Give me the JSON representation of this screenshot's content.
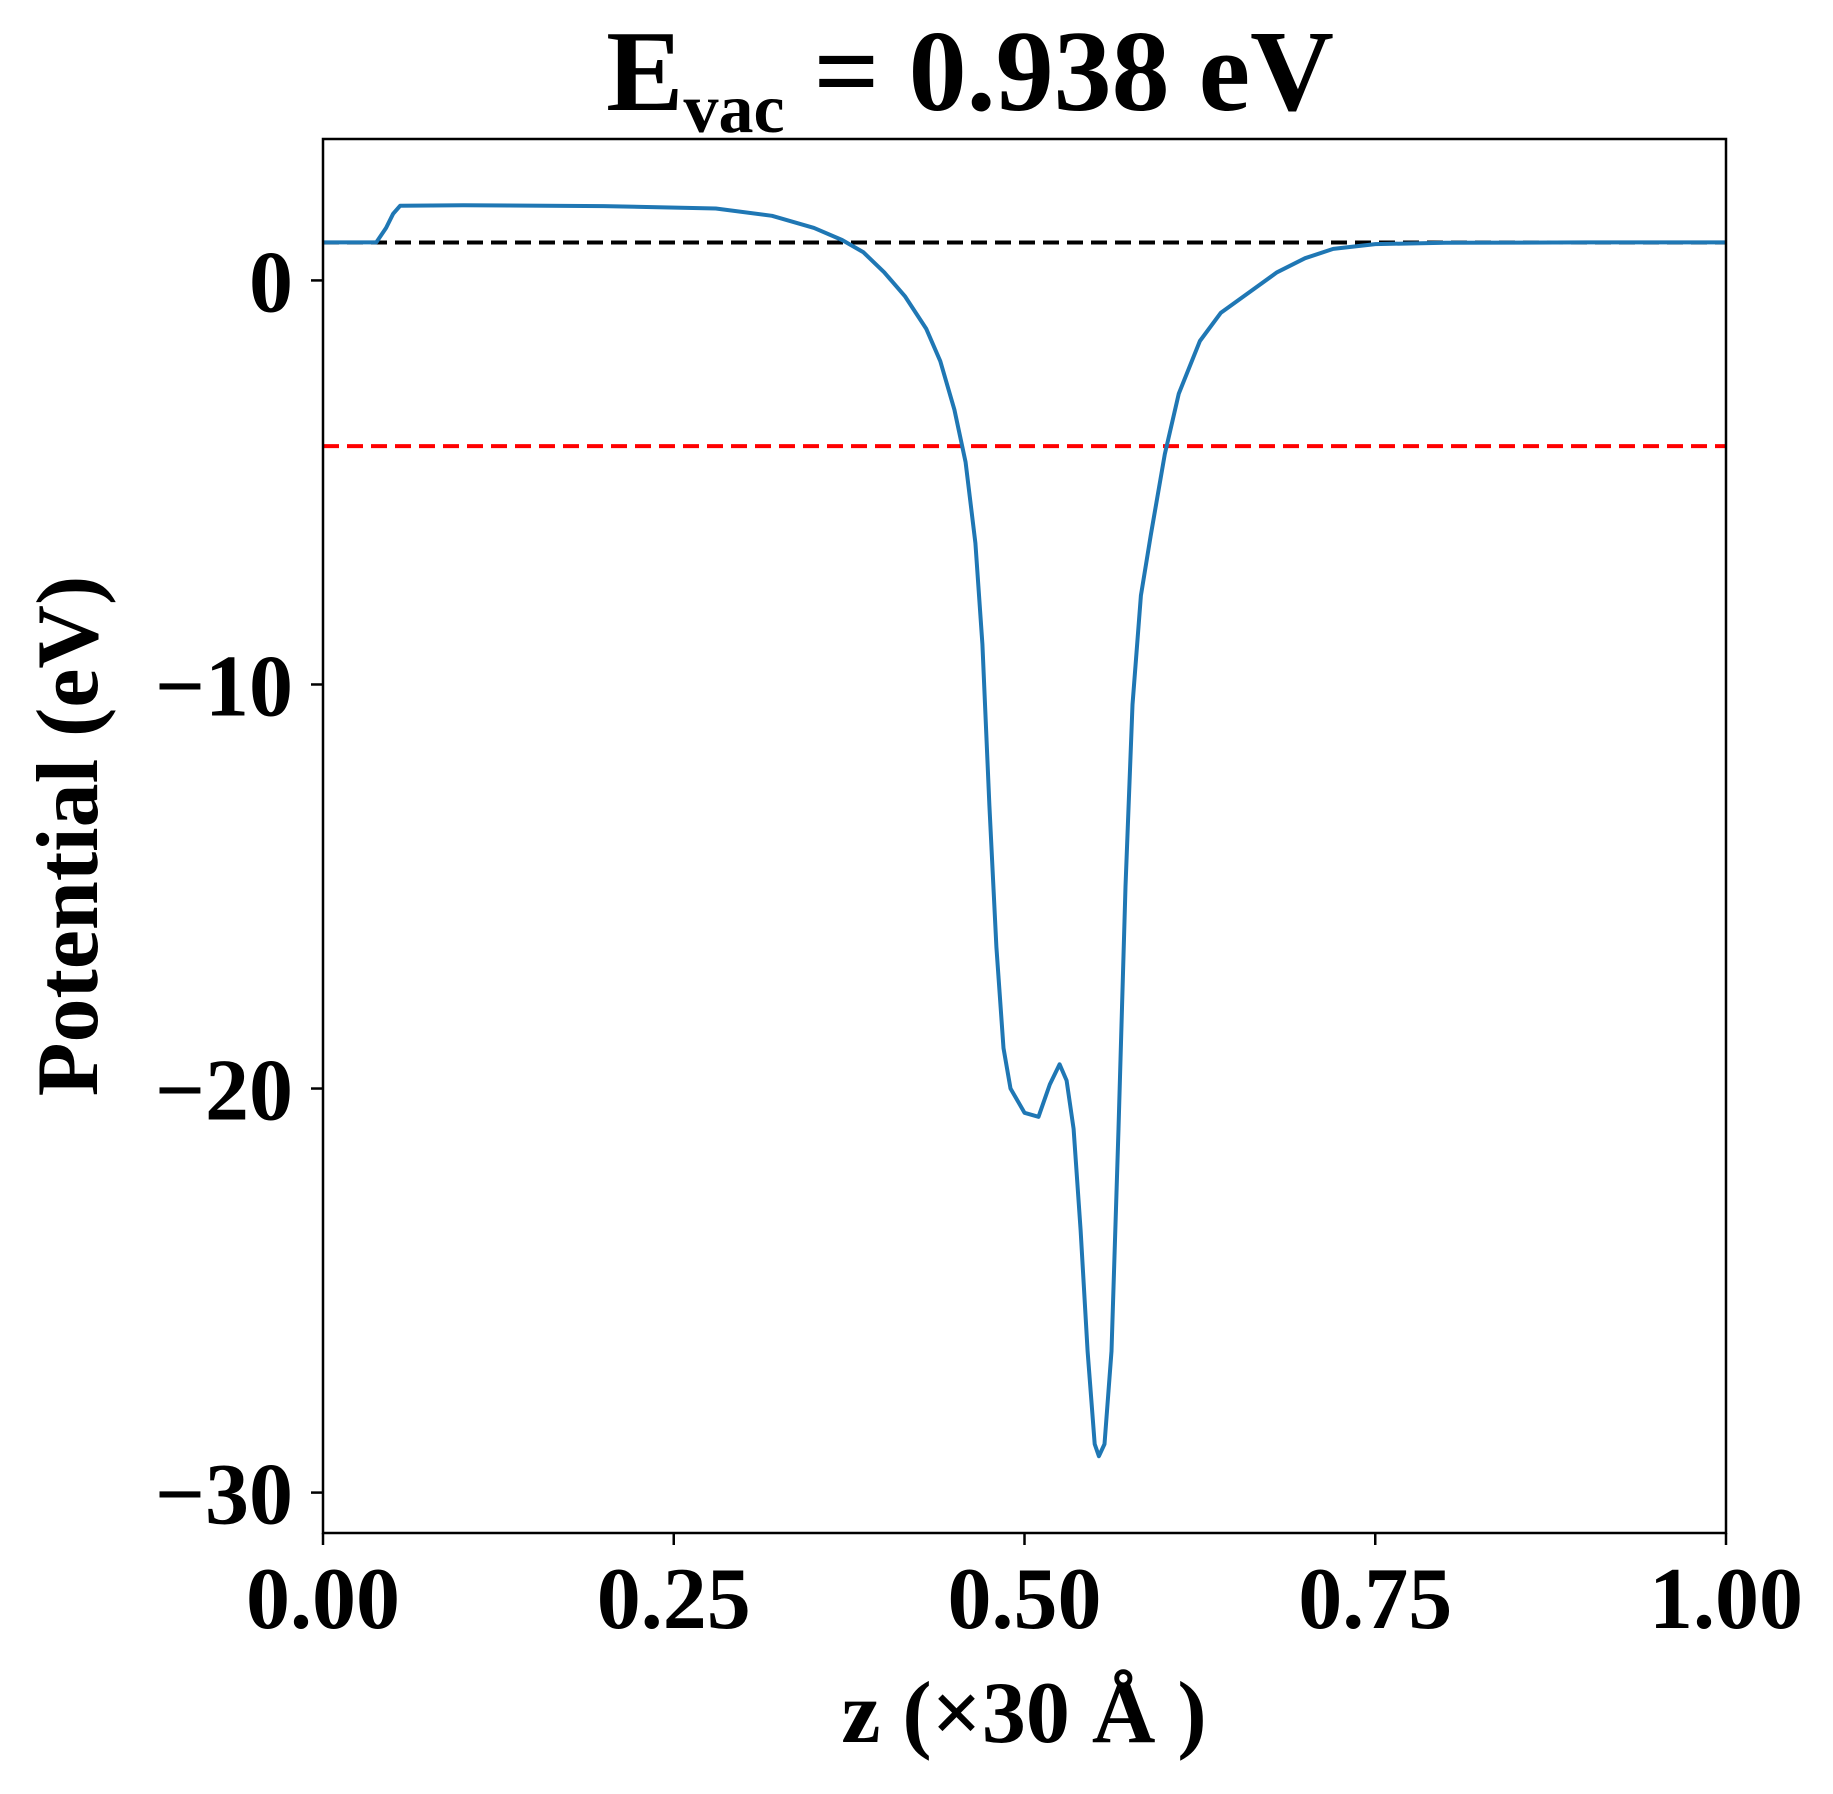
{
  "chart_data": {
    "type": "line",
    "title": {
      "main": "E",
      "subscript": "vac",
      "rest": " = 0.938 eV"
    },
    "xlabel": "z (×30 Å )",
    "ylabel": "Potential (eV)",
    "xlim": [
      0,
      1
    ],
    "ylim": [
      -31,
      3.5
    ],
    "xticks": [
      0,
      0.25,
      0.5,
      0.75,
      1.0
    ],
    "xtick_labels": [
      "0.00",
      "0.25",
      "0.50",
      "0.75",
      "1.00"
    ],
    "yticks": [
      0,
      -10,
      -20,
      -30
    ],
    "ytick_labels": [
      "0",
      "−10",
      "−20",
      "−30"
    ],
    "grid": false,
    "reference_lines": [
      {
        "y": 0.938,
        "color": "#000000",
        "style": "dashed"
      },
      {
        "y": -4.1,
        "color": "#ff0000",
        "style": "dashed"
      }
    ],
    "series": [
      {
        "color": "#1f77b4",
        "points": [
          [
            0.0,
            0.94
          ],
          [
            0.038,
            0.94
          ],
          [
            0.045,
            1.3
          ],
          [
            0.05,
            1.65
          ],
          [
            0.055,
            1.85
          ],
          [
            0.1,
            1.86
          ],
          [
            0.2,
            1.84
          ],
          [
            0.28,
            1.78
          ],
          [
            0.32,
            1.6
          ],
          [
            0.35,
            1.3
          ],
          [
            0.37,
            1.0
          ],
          [
            0.385,
            0.7
          ],
          [
            0.4,
            0.2
          ],
          [
            0.415,
            -0.4
          ],
          [
            0.43,
            -1.2
          ],
          [
            0.44,
            -2.0
          ],
          [
            0.45,
            -3.2
          ],
          [
            0.458,
            -4.5
          ],
          [
            0.465,
            -6.5
          ],
          [
            0.47,
            -9.0
          ],
          [
            0.475,
            -13.0
          ],
          [
            0.48,
            -16.5
          ],
          [
            0.485,
            -19.0
          ],
          [
            0.49,
            -20.0
          ],
          [
            0.5,
            -20.6
          ],
          [
            0.51,
            -20.7
          ],
          [
            0.518,
            -19.9
          ],
          [
            0.525,
            -19.4
          ],
          [
            0.53,
            -19.8
          ],
          [
            0.535,
            -21.0
          ],
          [
            0.54,
            -23.5
          ],
          [
            0.545,
            -26.5
          ],
          [
            0.55,
            -28.8
          ],
          [
            0.553,
            -29.1
          ],
          [
            0.557,
            -28.8
          ],
          [
            0.562,
            -26.5
          ],
          [
            0.567,
            -21.0
          ],
          [
            0.572,
            -15.0
          ],
          [
            0.577,
            -10.5
          ],
          [
            0.583,
            -7.8
          ],
          [
            0.59,
            -6.3
          ],
          [
            0.6,
            -4.3
          ],
          [
            0.61,
            -2.8
          ],
          [
            0.625,
            -1.5
          ],
          [
            0.64,
            -0.8
          ],
          [
            0.66,
            -0.3
          ],
          [
            0.68,
            0.2
          ],
          [
            0.7,
            0.55
          ],
          [
            0.72,
            0.78
          ],
          [
            0.75,
            0.9
          ],
          [
            0.8,
            0.93
          ],
          [
            0.9,
            0.94
          ],
          [
            1.0,
            0.94
          ]
        ]
      }
    ]
  }
}
